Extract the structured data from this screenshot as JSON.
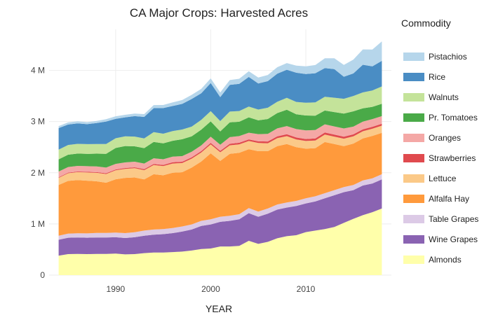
{
  "chart_data": {
    "type": "area",
    "stacked": true,
    "title": "CA Major Crops:  Harvested Acres",
    "xlabel": "YEAR",
    "ylabel": "",
    "legend_title": "Commodity",
    "legend_position": "right",
    "grid": true,
    "xlim": [
      1983,
      2019
    ],
    "ylim": [
      0,
      4800000
    ],
    "x_ticks": [
      {
        "value": 1990,
        "label": "1990"
      },
      {
        "value": 2000,
        "label": "2000"
      },
      {
        "value": 2010,
        "label": "2010"
      }
    ],
    "y_ticks": [
      {
        "value": 0,
        "label": "0"
      },
      {
        "value": 1000000,
        "label": "1 M"
      },
      {
        "value": 2000000,
        "label": "2 M"
      },
      {
        "value": 3000000,
        "label": "3 M"
      },
      {
        "value": 4000000,
        "label": "4 M"
      }
    ],
    "x": [
      1984,
      1985,
      1986,
      1987,
      1988,
      1989,
      1990,
      1991,
      1992,
      1993,
      1994,
      1995,
      1996,
      1997,
      1998,
      1999,
      2000,
      2001,
      2002,
      2003,
      2004,
      2005,
      2006,
      2007,
      2008,
      2009,
      2010,
      2011,
      2012,
      2013,
      2014,
      2015,
      2016,
      2017,
      2018
    ],
    "series": [
      {
        "name": "Almonds",
        "color": "#ffffaa",
        "values": [
          380000,
          410000,
          415000,
          410000,
          415000,
          415000,
          420000,
          405000,
          410000,
          430000,
          440000,
          440000,
          450000,
          460000,
          480000,
          510000,
          520000,
          560000,
          560000,
          570000,
          670000,
          610000,
          650000,
          720000,
          760000,
          780000,
          840000,
          870000,
          900000,
          940000,
          1020000,
          1100000,
          1170000,
          1230000,
          1300000
        ]
      },
      {
        "name": "Wine Grapes",
        "color": "#8a63b2",
        "values": [
          310000,
          320000,
          320000,
          320000,
          320000,
          320000,
          320000,
          320000,
          330000,
          340000,
          350000,
          360000,
          370000,
          390000,
          410000,
          450000,
          470000,
          480000,
          500000,
          520000,
          540000,
          530000,
          550000,
          560000,
          560000,
          570000,
          560000,
          570000,
          600000,
          620000,
          600000,
          560000,
          580000,
          560000,
          570000
        ]
      },
      {
        "name": "Table Grapes",
        "color": "#dccae6",
        "values": [
          80000,
          80000,
          82000,
          85000,
          88000,
          90000,
          92000,
          95000,
          98000,
          100000,
          100000,
          100000,
          100000,
          100000,
          100000,
          100000,
          100000,
          100000,
          100000,
          100000,
          100000,
          100000,
          100000,
          100000,
          100000,
          100000,
          100000,
          100000,
          100000,
          100000,
          100000,
          100000,
          100000,
          100000,
          100000
        ]
      },
      {
        "name": "Alfalfa Hay",
        "color": "#ff9a3c",
        "values": [
          990000,
          1030000,
          1040000,
          1030000,
          1010000,
          980000,
          1040000,
          1080000,
          1070000,
          1000000,
          1080000,
          1050000,
          1080000,
          1060000,
          1110000,
          1160000,
          1290000,
          1090000,
          1210000,
          1200000,
          1150000,
          1180000,
          1120000,
          1140000,
          1140000,
          1050000,
          970000,
          940000,
          1000000,
          900000,
          800000,
          810000,
          820000,
          830000,
          810000
        ]
      },
      {
        "name": "Lettuce",
        "color": "#fbc988",
        "values": [
          140000,
          150000,
          155000,
          160000,
          165000,
          170000,
          175000,
          175000,
          180000,
          180000,
          180000,
          180000,
          180000,
          180000,
          175000,
          175000,
          175000,
          170000,
          165000,
          165000,
          160000,
          160000,
          155000,
          155000,
          155000,
          150000,
          150000,
          150000,
          145000,
          145000,
          145000,
          140000,
          140000,
          140000,
          140000
        ]
      },
      {
        "name": "Strawberries",
        "color": "#e04a4e",
        "values": [
          12000,
          12000,
          12000,
          13000,
          14000,
          15000,
          16000,
          17000,
          18000,
          20000,
          22000,
          23000,
          24000,
          25000,
          26000,
          27000,
          28000,
          28000,
          30000,
          31000,
          32000,
          34000,
          35000,
          36000,
          37000,
          38000,
          38000,
          39000,
          40000,
          40000,
          40000,
          40000,
          39000,
          38000,
          36000
        ]
      },
      {
        "name": "Oranges",
        "color": "#f4a8a6",
        "values": [
          110000,
          110000,
          110000,
          110000,
          110000,
          110000,
          110000,
          110000,
          110000,
          110000,
          110000,
          110000,
          110000,
          110000,
          110000,
          110000,
          120000,
          120000,
          130000,
          130000,
          130000,
          140000,
          150000,
          155000,
          160000,
          165000,
          170000,
          165000,
          160000,
          160000,
          160000,
          150000,
          150000,
          150000,
          150000
        ]
      },
      {
        "name": "Pr. Tomatoes",
        "color": "#4aaa48",
        "values": [
          240000,
          240000,
          240000,
          240000,
          250000,
          270000,
          310000,
          320000,
          300000,
          300000,
          320000,
          310000,
          310000,
          330000,
          300000,
          310000,
          300000,
          260000,
          290000,
          280000,
          300000,
          270000,
          290000,
          300000,
          320000,
          290000,
          290000,
          280000,
          270000,
          280000,
          290000,
          300000,
          260000,
          240000,
          240000
        ]
      },
      {
        "name": "Walnuts",
        "color": "#c4e39a",
        "values": [
          190000,
          190000,
          190000,
          190000,
          190000,
          190000,
          190000,
          190000,
          190000,
          190000,
          190000,
          190000,
          190000,
          190000,
          190000,
          190000,
          200000,
          200000,
          210000,
          210000,
          210000,
          210000,
          220000,
          220000,
          230000,
          240000,
          250000,
          260000,
          270000,
          280000,
          290000,
          300000,
          310000,
          320000,
          340000
        ]
      },
      {
        "name": "Rice",
        "color": "#4a8dc4",
        "values": [
          420000,
          400000,
          400000,
          390000,
          410000,
          440000,
          380000,
          370000,
          400000,
          420000,
          470000,
          500000,
          490000,
          500000,
          540000,
          520000,
          550000,
          470000,
          520000,
          530000,
          580000,
          510000,
          520000,
          550000,
          550000,
          570000,
          560000,
          570000,
          560000,
          560000,
          430000,
          440000,
          540000,
          470000,
          500000
        ]
      },
      {
        "name": "Pistachios",
        "color": "#b6d6eb",
        "values": [
          40000,
          40000,
          40000,
          40000,
          40000,
          45000,
          50000,
          50000,
          50000,
          55000,
          60000,
          60000,
          70000,
          75000,
          80000,
          85000,
          90000,
          90000,
          95000,
          100000,
          110000,
          115000,
          120000,
          125000,
          130000,
          140000,
          150000,
          160000,
          190000,
          210000,
          230000,
          270000,
          300000,
          330000,
          380000
        ]
      }
    ]
  }
}
